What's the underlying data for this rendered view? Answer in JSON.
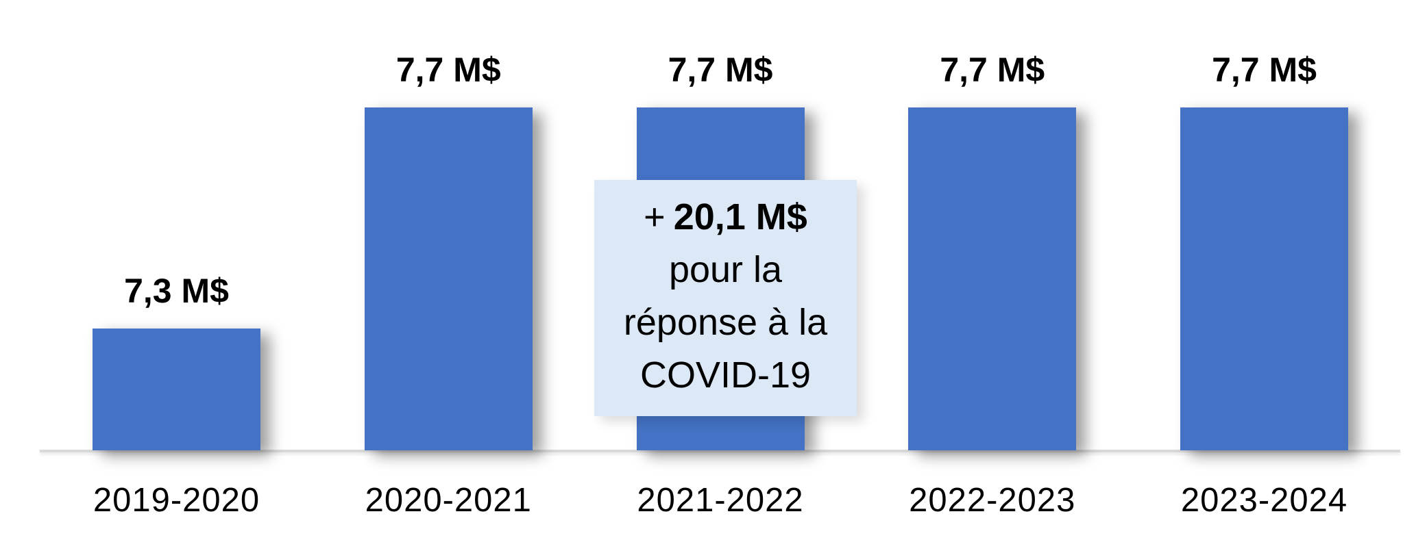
{
  "chart_data": {
    "type": "bar",
    "title": "",
    "xlabel": "",
    "ylabel": "",
    "categories": [
      "2019-2020",
      "2020-2021",
      "2021-2022",
      "2022-2023",
      "2023-2024"
    ],
    "values": [
      7.3,
      7.7,
      7.7,
      7.7,
      7.7
    ],
    "value_labels": [
      "7,3 M$",
      "7,7 M$",
      "7,7 M$",
      "7,7 M$",
      "7,7 M$"
    ],
    "unit": "M$",
    "ylim": [
      7.08,
      7.7
    ],
    "grid": false,
    "legend": false,
    "annotation": {
      "prefix": "+",
      "amount": "20,1 M$",
      "lines": [
        "pour la",
        "réponse à la",
        "COVID-19"
      ],
      "attached_to": "2021-2022"
    },
    "colors": {
      "bar": "#4472c4",
      "annotation_bg": "#dce8f5",
      "axis_line": "#d9d9d9",
      "text": "#000000"
    }
  }
}
